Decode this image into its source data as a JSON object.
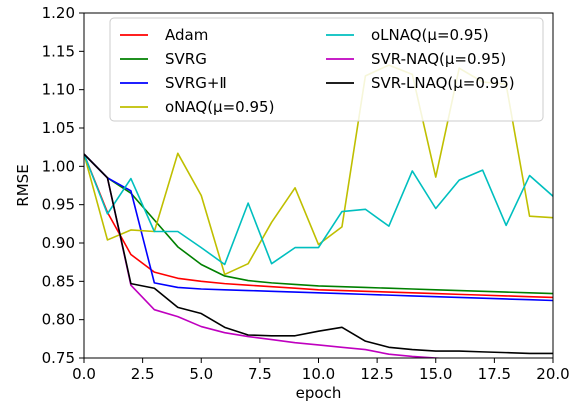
{
  "chart_data": {
    "type": "line",
    "xlabel": "epoch",
    "ylabel": "RMSE",
    "xlim": [
      0.0,
      20.0
    ],
    "ylim": [
      0.75,
      1.2
    ],
    "x_ticks": [
      "0.0",
      "2.5",
      "5.0",
      "7.5",
      "10.0",
      "12.5",
      "15.0",
      "17.5",
      "20.0"
    ],
    "y_ticks": [
      "0.75",
      "0.80",
      "0.85",
      "0.90",
      "0.95",
      "1.00",
      "1.05",
      "1.10",
      "1.15",
      "1.20"
    ],
    "grid": false,
    "legend_placement": "top",
    "x": [
      0,
      1,
      2,
      3,
      4,
      5,
      6,
      7,
      8,
      9,
      10,
      11,
      12,
      13,
      14,
      15,
      16,
      17,
      18,
      19,
      20
    ],
    "series": [
      {
        "name": "Adam",
        "color": "#ff0000",
        "values": [
          1.016,
          0.94,
          0.885,
          0.862,
          0.854,
          0.85,
          0.847,
          0.845,
          0.843,
          0.841,
          0.839,
          0.838,
          0.837,
          0.836,
          0.835,
          0.834,
          0.833,
          0.832,
          0.831,
          0.83,
          0.829
        ]
      },
      {
        "name": "SVRG",
        "color": "#008000",
        "values": [
          1.016,
          0.985,
          0.965,
          0.93,
          0.895,
          0.872,
          0.857,
          0.851,
          0.848,
          0.846,
          0.844,
          0.843,
          0.842,
          0.841,
          0.84,
          0.839,
          0.838,
          0.837,
          0.836,
          0.835,
          0.834
        ]
      },
      {
        "name": "SVRG+Ⅱ",
        "color": "#0000ff",
        "values": [
          1.016,
          0.985,
          0.968,
          0.848,
          0.842,
          0.84,
          0.839,
          0.838,
          0.837,
          0.836,
          0.835,
          0.834,
          0.833,
          0.832,
          0.831,
          0.83,
          0.829,
          0.828,
          0.827,
          0.826,
          0.825
        ]
      },
      {
        "name": "oNAQ(μ=0.95)",
        "color": "#bfbf00",
        "values": [
          1.016,
          0.904,
          0.917,
          0.915,
          1.017,
          0.962,
          0.859,
          0.873,
          0.927,
          0.972,
          0.898,
          0.921,
          1.118,
          1.132,
          1.12,
          0.986,
          1.128,
          1.11,
          1.107,
          0.935,
          0.933
        ]
      },
      {
        "name": "oLNAQ(μ=0.95)",
        "color": "#00bfbf",
        "values": [
          1.016,
          0.938,
          0.984,
          0.915,
          0.915,
          0.894,
          0.872,
          0.952,
          0.873,
          0.894,
          0.894,
          0.941,
          0.944,
          0.922,
          0.994,
          0.945,
          0.982,
          0.995,
          0.923,
          0.988,
          0.961
        ]
      },
      {
        "name": "SVR-NAQ(μ=0.95)",
        "color": "#bf00bf",
        "values": [
          1.016,
          0.985,
          0.845,
          0.813,
          0.804,
          0.791,
          0.783,
          0.778,
          0.774,
          0.77,
          0.767,
          0.764,
          0.761,
          0.755,
          0.752,
          0.75,
          0.748,
          0.747,
          0.746,
          0.745,
          0.744
        ]
      },
      {
        "name": "SVR-LNAQ(μ=0.95)",
        "color": "#000000",
        "values": [
          1.016,
          0.985,
          0.847,
          0.841,
          0.816,
          0.808,
          0.79,
          0.78,
          0.779,
          0.779,
          0.785,
          0.79,
          0.772,
          0.764,
          0.761,
          0.759,
          0.759,
          0.758,
          0.757,
          0.756,
          0.756
        ]
      }
    ]
  }
}
